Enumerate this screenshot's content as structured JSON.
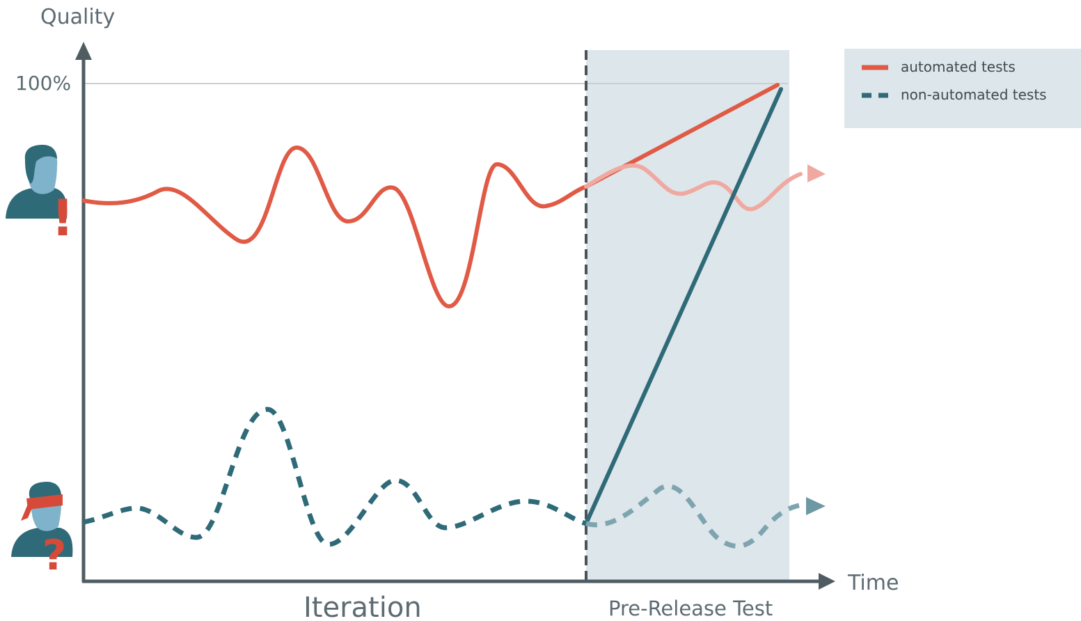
{
  "axes": {
    "y_label": "Quality",
    "x_label": "Time",
    "y_tick": "100%"
  },
  "regions": {
    "iteration_label": "Iteration",
    "pre_release_label": "Pre-Release Test"
  },
  "legend": {
    "items": [
      {
        "label": "automated tests",
        "style": "solid",
        "color": "#e05a45"
      },
      {
        "label": "non-automated tests",
        "style": "dashed",
        "color": "#2f6a78"
      }
    ]
  },
  "icons": {
    "top_person": {
      "name": "alert-person-icon",
      "mark": "!"
    },
    "bottom_person": {
      "name": "blindfolded-person-icon",
      "mark": "?"
    }
  },
  "colors": {
    "automated": "#e05a45",
    "automated_faded": "#f0a9a0",
    "non_automated": "#2f6a78",
    "non_automated_faded": "#7ea4b0",
    "axis": "#4f5d63",
    "shade": "#dde6ea",
    "person": "#2f6a78",
    "person_face": "#7fb3cc"
  }
}
